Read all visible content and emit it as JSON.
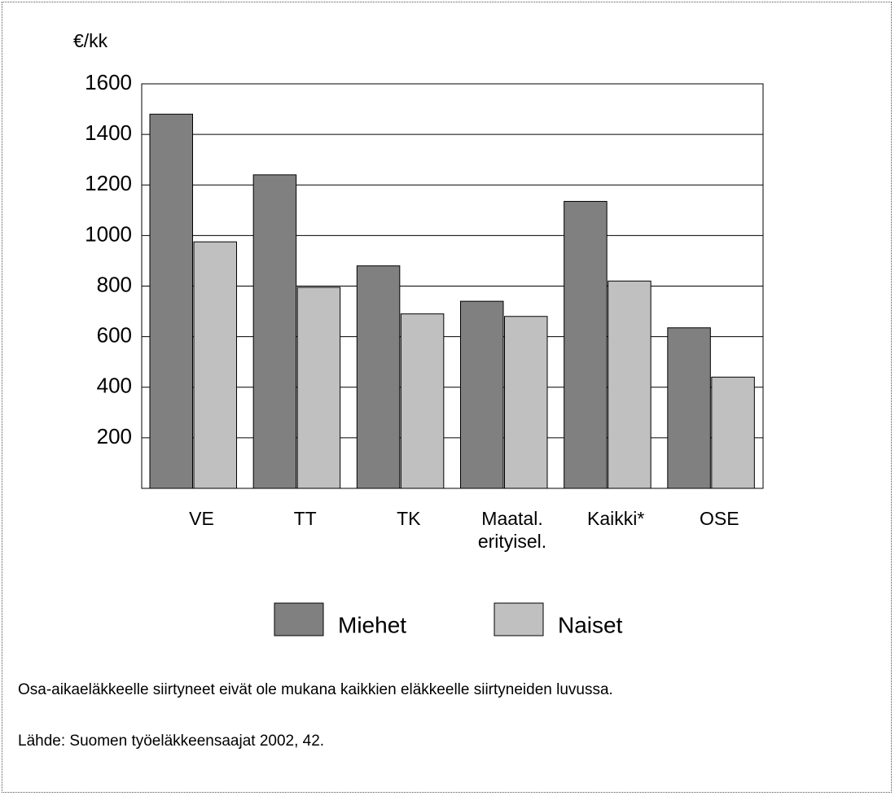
{
  "chart_data": {
    "type": "bar",
    "y_label": "€/kk",
    "categories": [
      "VE",
      "TT",
      "TK",
      "Maatal.\nerityisel.",
      "Kaikki*",
      "OSE"
    ],
    "series": [
      {
        "name": "Miehet",
        "color": "#808080",
        "values": [
          1480,
          1240,
          880,
          740,
          1135,
          635
        ]
      },
      {
        "name": "Naiset",
        "color": "#c0c0c0",
        "values": [
          975,
          795,
          690,
          680,
          820,
          440
        ]
      }
    ],
    "ylim": [
      0,
      1600
    ],
    "yticks": [
      200,
      400,
      600,
      800,
      1000,
      1200,
      1400,
      1600
    ],
    "grid": true,
    "legend": "bottom",
    "notes": [
      "Osa-aikaeläkkeelle siirtyneet eivät ole mukana kaikkien eläkkeelle siirtyneiden luvussa.",
      "Lähde: Suomen työeläkkeensaajat 2002, 42."
    ]
  }
}
